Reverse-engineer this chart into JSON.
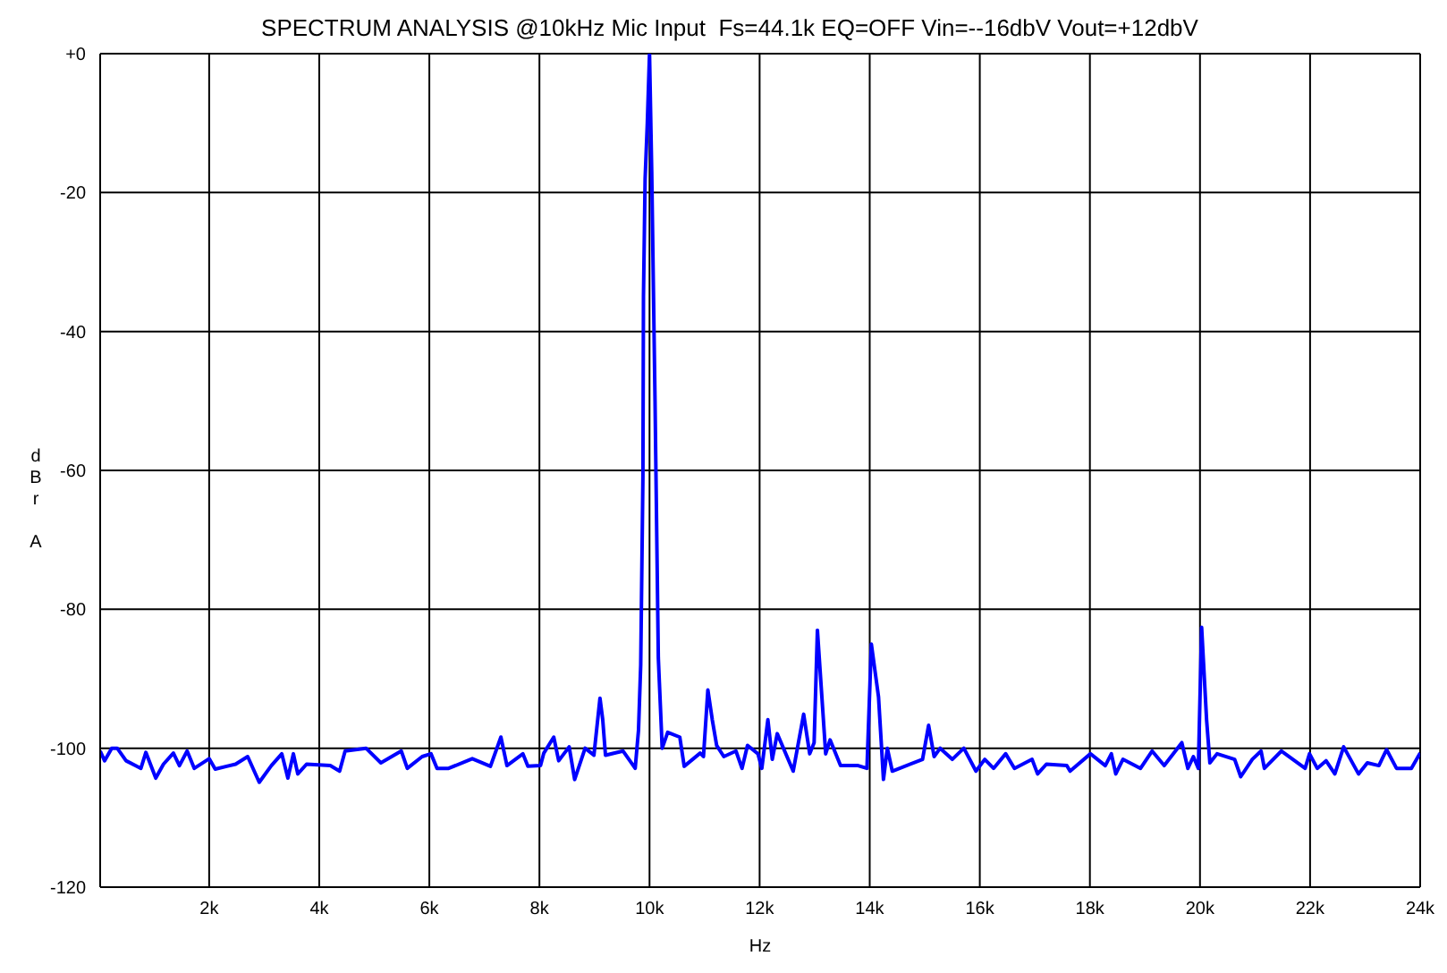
{
  "chart_data": {
    "type": "line",
    "title": "SPECTRUM ANALYSIS @10kHz Mic Input  Fs=44.1k EQ=OFF Vin=--16dbV Vout=+12dbV",
    "xlabel": "Hz",
    "ylabel": "dBr A",
    "xlim": [
      20,
      24000
    ],
    "xticks": [
      {
        "value": 2000,
        "label": "2k"
      },
      {
        "value": 4000,
        "label": "4k"
      },
      {
        "value": 6000,
        "label": "6k"
      },
      {
        "value": 8000,
        "label": "8k"
      },
      {
        "value": 10000,
        "label": "10k"
      },
      {
        "value": 12000,
        "label": "12k"
      },
      {
        "value": 14000,
        "label": "14k"
      },
      {
        "value": 16000,
        "label": "16k"
      },
      {
        "value": 18000,
        "label": "18k"
      },
      {
        "value": 20000,
        "label": "20k"
      },
      {
        "value": 22000,
        "label": "22k"
      },
      {
        "value": 24000,
        "label": "24k"
      }
    ],
    "ylim": [
      -120,
      0
    ],
    "yticks": [
      -120,
      -100,
      -80,
      -60,
      -40,
      -20,
      {
        "value": 0,
        "label": "+0"
      }
    ],
    "grid": true,
    "legend": false,
    "marker": "none",
    "line_style": "solid",
    "series": [
      {
        "color": "#0000ff",
        "x": [
          20,
          100,
          230,
          330,
          490,
          660,
          760,
          850,
          1030,
          1170,
          1350,
          1460,
          1600,
          1730,
          2000,
          2110,
          2480,
          2700,
          2910,
          3130,
          3320,
          3430,
          3530,
          3610,
          3770,
          4200,
          4370,
          4470,
          4850,
          5120,
          5490,
          5600,
          5870,
          6030,
          6140,
          6350,
          6780,
          7110,
          7300,
          7410,
          7700,
          7790,
          8020,
          8080,
          8260,
          8350,
          8540,
          8640,
          8830,
          8990,
          9100,
          9150,
          9200,
          9520,
          9740,
          9800,
          9840,
          9880,
          9890,
          9920,
          9960,
          10000,
          10040,
          10100,
          10160,
          10230,
          10330,
          10550,
          10630,
          10920,
          10980,
          11060,
          11140,
          11220,
          11350,
          11570,
          11680,
          11780,
          11970,
          12040,
          12150,
          12230,
          12320,
          12610,
          12800,
          12910,
          12990,
          13050,
          13200,
          13280,
          13470,
          13790,
          13950,
          14030,
          14160,
          14250,
          14320,
          14410,
          14960,
          15070,
          15170,
          15280,
          15500,
          15710,
          15930,
          16090,
          16250,
          16470,
          16630,
          16950,
          17050,
          17210,
          17580,
          17640,
          18010,
          18280,
          18390,
          18470,
          18600,
          18920,
          19130,
          19350,
          19670,
          19780,
          19880,
          19970,
          20030,
          20120,
          20180,
          20310,
          20630,
          20740,
          20950,
          21110,
          21170,
          21480,
          21910,
          21990,
          22130,
          22290,
          22450,
          22610,
          22880,
          23040,
          23250,
          23390,
          23570,
          23840,
          24000
        ],
        "values": [
          -100.4,
          -101.8,
          -100,
          -100,
          -101.8,
          -102.5,
          -102.9,
          -100.6,
          -104.3,
          -102.3,
          -100.7,
          -102.5,
          -100.4,
          -102.9,
          -101.5,
          -103,
          -102.3,
          -101.2,
          -104.9,
          -102.5,
          -100.8,
          -104.3,
          -100.8,
          -103.7,
          -102.3,
          -102.5,
          -103.3,
          -100.4,
          -100,
          -102.1,
          -100.4,
          -102.9,
          -101.2,
          -100.8,
          -102.9,
          -102.9,
          -101.5,
          -102.6,
          -98.4,
          -102.5,
          -100.8,
          -102.6,
          -102.5,
          -100.7,
          -98.4,
          -101.8,
          -99.8,
          -104.5,
          -100,
          -101,
          -92.8,
          -95.9,
          -101,
          -100.4,
          -102.9,
          -97.4,
          -88,
          -61,
          -35,
          -18,
          -10,
          0,
          -17,
          -50,
          -87,
          -100,
          -97.7,
          -98.4,
          -102.6,
          -100.7,
          -101.2,
          -91.6,
          -95.9,
          -99.6,
          -101.2,
          -100.4,
          -102.9,
          -99.6,
          -100.8,
          -102.9,
          -95.9,
          -101.6,
          -97.9,
          -103.3,
          -95.1,
          -100.8,
          -99.2,
          -83,
          -100.8,
          -98.8,
          -102.5,
          -102.5,
          -102.9,
          -85,
          -92.6,
          -104.5,
          -100,
          -103.3,
          -101.6,
          -96.7,
          -101.2,
          -100,
          -101.6,
          -100,
          -103.3,
          -101.6,
          -102.9,
          -100.8,
          -102.9,
          -101.6,
          -103.7,
          -102.3,
          -102.5,
          -103.3,
          -100.8,
          -102.5,
          -100.8,
          -103.7,
          -101.6,
          -102.9,
          -100.4,
          -102.5,
          -99.2,
          -102.9,
          -101.2,
          -102.9,
          -82.6,
          -95.9,
          -102.1,
          -100.8,
          -101.6,
          -104.1,
          -101.6,
          -100.4,
          -102.9,
          -100.4,
          -102.9,
          -100.8,
          -102.9,
          -101.8,
          -103.7,
          -99.8,
          -103.7,
          -102.1,
          -102.5,
          -100.2,
          -102.9,
          -102.9,
          -100.7
        ]
      }
    ]
  }
}
